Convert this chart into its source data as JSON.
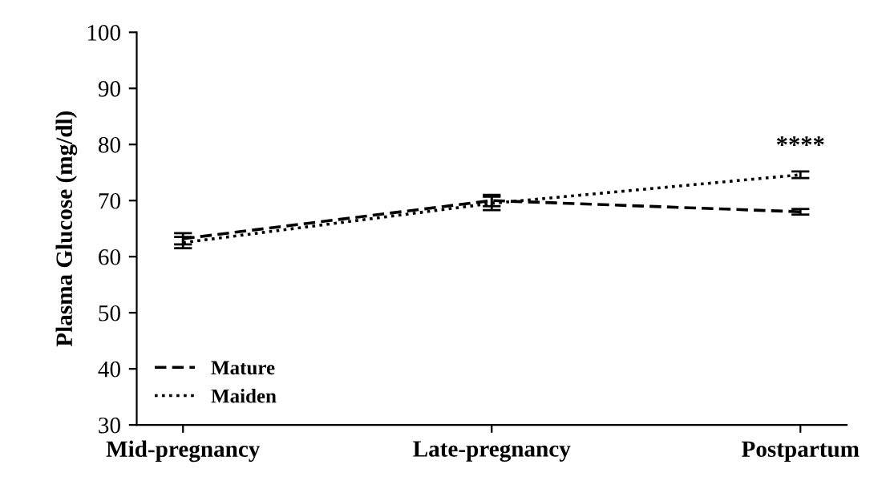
{
  "chart_data": {
    "type": "line",
    "ylabel": "Plasma Glucose (mg/dl)",
    "categories": [
      "Mid-pregnancy",
      "Late-pregnancy",
      "Postpartum"
    ],
    "series": [
      {
        "name": "Mature",
        "color": "#000000",
        "line_style": "dashed",
        "values": [
          63.2,
          70,
          68
        ],
        "errors": [
          1,
          1,
          0.5
        ]
      },
      {
        "name": "Maiden",
        "color": "#000000",
        "line_style": "dotted",
        "values": [
          62.5,
          69.5,
          74.6
        ],
        "errors": [
          1,
          1.2,
          0.6
        ]
      }
    ],
    "ylim": [
      30,
      100
    ],
    "yticks": [
      30,
      40,
      50,
      60,
      70,
      80,
      90,
      100
    ],
    "grid": false,
    "legend": "bottom left",
    "marker": "none",
    "annotations": [
      "****"
    ]
  }
}
